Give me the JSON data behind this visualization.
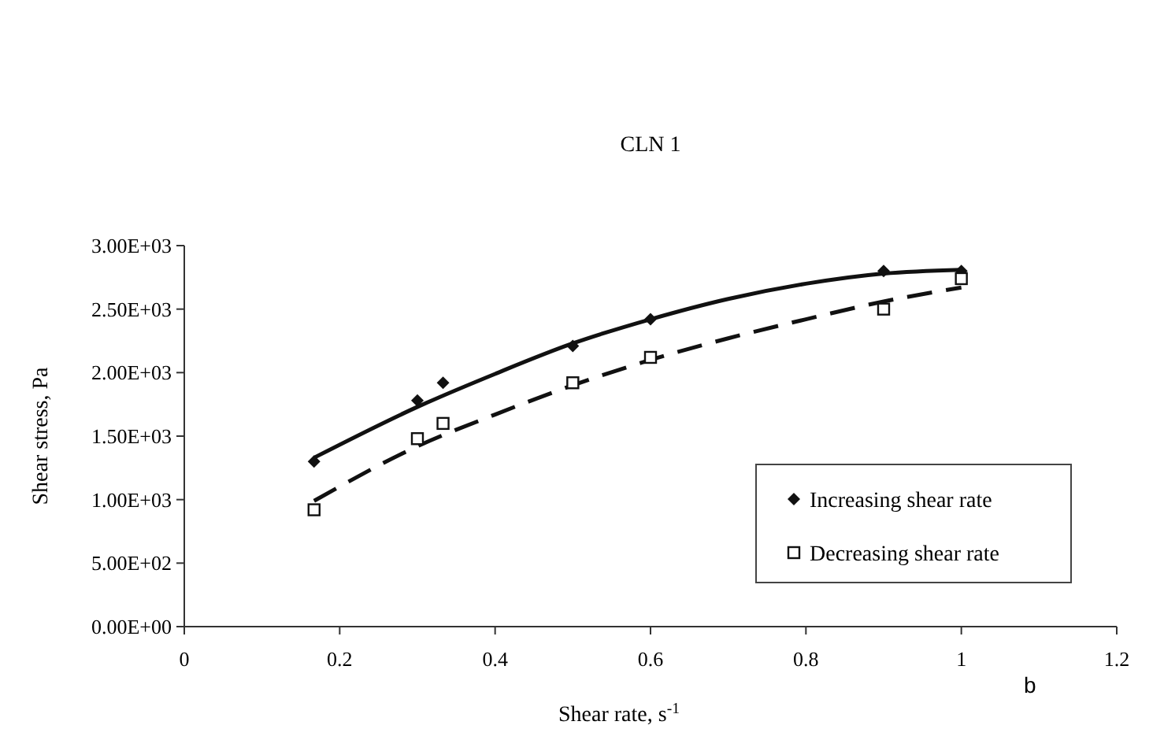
{
  "chart_data": {
    "type": "scatter",
    "title": "CLN 1",
    "xlabel": "Shear rate, s$^{-1}$",
    "ylabel": "Shear stress, Pa",
    "xlim": [
      0,
      1.2
    ],
    "xticks": [
      0,
      0.2,
      0.4,
      0.6,
      0.8,
      1,
      1.2
    ],
    "ylim": [
      0,
      3000
    ],
    "yticks": [
      {
        "value": 0,
        "label": "0.00E+00"
      },
      {
        "value": 500,
        "label": "5.00E+02"
      },
      {
        "value": 1000,
        "label": "1.00E+03"
      },
      {
        "value": 1500,
        "label": "1.50E+03"
      },
      {
        "value": 2000,
        "label": "2.00E+03"
      },
      {
        "value": 2500,
        "label": "2.50E+03"
      },
      {
        "value": 3000,
        "label": "3.00E+03"
      }
    ],
    "grid": false,
    "legend": "bottom right",
    "annotations": [
      "b"
    ],
    "series": [
      {
        "name": "Increasing shear rate",
        "marker": "diamond",
        "color": "#111111",
        "x": [
          0.167,
          0.3,
          0.333,
          0.5,
          0.6,
          0.9,
          1
        ],
        "values": [
          1300,
          1780,
          1920,
          2210,
          2420,
          2800,
          2800
        ]
      },
      {
        "name": "Decreasing shear rate",
        "marker": "square",
        "color": "#111111",
        "x": [
          0.167,
          0.3,
          0.333,
          0.5,
          0.6,
          0.9,
          1
        ],
        "values": [
          920,
          1480,
          1600,
          1920,
          2120,
          2500,
          2740
        ]
      },
      {
        "type": "line",
        "line_style": "solid",
        "marker": "none",
        "color": "#111111",
        "x": [
          0.167,
          0.3,
          0.4,
          0.5,
          0.6,
          0.7,
          0.8,
          0.9,
          1
        ],
        "values": [
          1330,
          1730,
          1990,
          2230,
          2420,
          2580,
          2700,
          2780,
          2810
        ]
      },
      {
        "type": "line",
        "line_style": "dashed",
        "marker": "none",
        "color": "#111111",
        "x": [
          0.167,
          0.3,
          0.4,
          0.5,
          0.6,
          0.7,
          0.8,
          0.9,
          1
        ],
        "values": [
          990,
          1420,
          1670,
          1900,
          2100,
          2270,
          2420,
          2560,
          2670
        ]
      }
    ]
  }
}
